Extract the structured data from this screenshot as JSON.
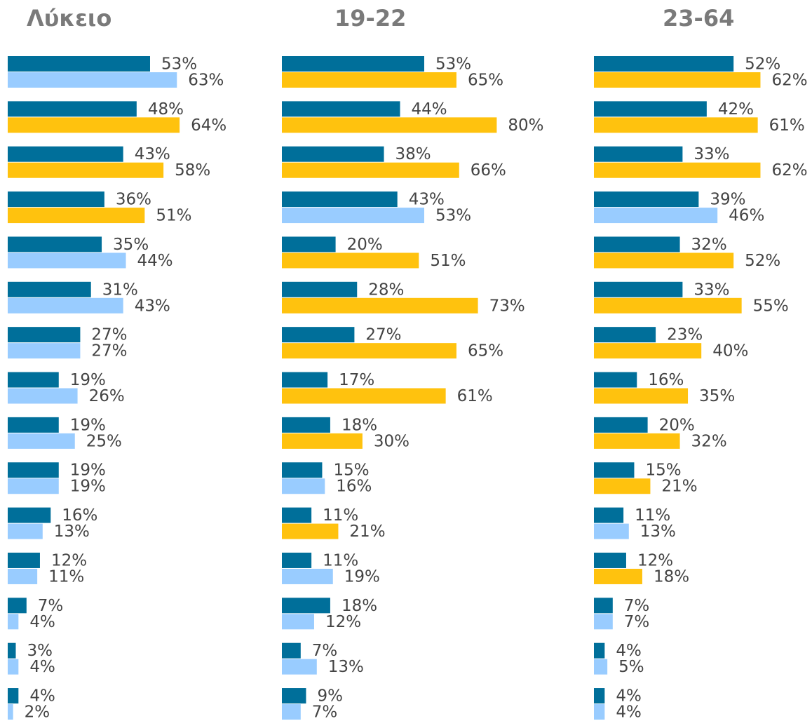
{
  "chart_data": [
    {
      "type": "bar",
      "title": "Λύκειο",
      "series": [
        {
          "color": "#006f9a",
          "values": [
            53,
            48,
            43,
            36,
            35,
            31,
            27,
            19,
            19,
            19,
            16,
            12,
            7,
            3,
            4
          ],
          "value_labels": [
            "53%",
            "48%",
            "43%",
            "36%",
            "35%",
            "31%",
            "27%",
            "19%",
            "19%",
            "19%",
            "16%",
            "12%",
            "7%",
            "3%",
            "4%"
          ]
        },
        {
          "colors": [
            "#99ccff",
            "#ffc20e",
            "#ffc20e",
            "#ffc20e",
            "#99ccff",
            "#99ccff",
            "#99ccff",
            "#99ccff",
            "#99ccff",
            "#99ccff",
            "#99ccff",
            "#99ccff",
            "#99ccff",
            "#99ccff",
            "#99ccff"
          ],
          "values": [
            63,
            64,
            58,
            51,
            44,
            43,
            27,
            26,
            25,
            19,
            13,
            11,
            4,
            4,
            2
          ],
          "value_labels": [
            "63%",
            "64%",
            "58%",
            "51%",
            "44%",
            "43%",
            "27%",
            "26%",
            "25%",
            "19%",
            "13%",
            "11%",
            "4%",
            "4%",
            "2%"
          ]
        }
      ]
    },
    {
      "type": "bar",
      "title": "19-22",
      "series": [
        {
          "color": "#006f9a",
          "values": [
            53,
            44,
            38,
            43,
            20,
            28,
            27,
            17,
            18,
            15,
            11,
            11,
            18,
            7,
            9
          ],
          "value_labels": [
            "53%",
            "44%",
            "38%",
            "43%",
            "20%",
            "28%",
            "27%",
            "17%",
            "18%",
            "15%",
            "11%",
            "11%",
            "18%",
            "7%",
            "9%"
          ]
        },
        {
          "colors": [
            "#ffc20e",
            "#ffc20e",
            "#ffc20e",
            "#99ccff",
            "#ffc20e",
            "#ffc20e",
            "#ffc20e",
            "#ffc20e",
            "#ffc20e",
            "#99ccff",
            "#ffc20e",
            "#99ccff",
            "#99ccff",
            "#99ccff",
            "#99ccff"
          ],
          "values": [
            65,
            80,
            66,
            53,
            51,
            73,
            65,
            61,
            30,
            16,
            21,
            19,
            12,
            13,
            7
          ],
          "value_labels": [
            "65%",
            "80%",
            "66%",
            "53%",
            "51%",
            "73%",
            "65%",
            "61%",
            "30%",
            "16%",
            "21%",
            "19%",
            "12%",
            "13%",
            "7%"
          ]
        }
      ]
    },
    {
      "type": "bar",
      "title": "23-64",
      "series": [
        {
          "color": "#006f9a",
          "values": [
            52,
            42,
            33,
            39,
            32,
            33,
            23,
            16,
            20,
            15,
            11,
            12,
            7,
            4,
            4
          ],
          "value_labels": [
            "52%",
            "42%",
            "33%",
            "39%",
            "32%",
            "33%",
            "23%",
            "16%",
            "20%",
            "15%",
            "11%",
            "12%",
            "7%",
            "4%",
            "4%"
          ]
        },
        {
          "colors": [
            "#ffc20e",
            "#ffc20e",
            "#ffc20e",
            "#99ccff",
            "#ffc20e",
            "#ffc20e",
            "#ffc20e",
            "#ffc20e",
            "#ffc20e",
            "#ffc20e",
            "#99ccff",
            "#ffc20e",
            "#99ccff",
            "#99ccff",
            "#99ccff"
          ],
          "values": [
            62,
            61,
            62,
            46,
            52,
            55,
            40,
            35,
            32,
            21,
            13,
            18,
            7,
            5,
            4
          ],
          "value_labels": [
            "62%",
            "61%",
            "62%",
            "46%",
            "52%",
            "55%",
            "40%",
            "35%",
            "32%",
            "21%",
            "13%",
            "18%",
            "7%",
            "5%",
            "4%"
          ]
        }
      ]
    }
  ]
}
